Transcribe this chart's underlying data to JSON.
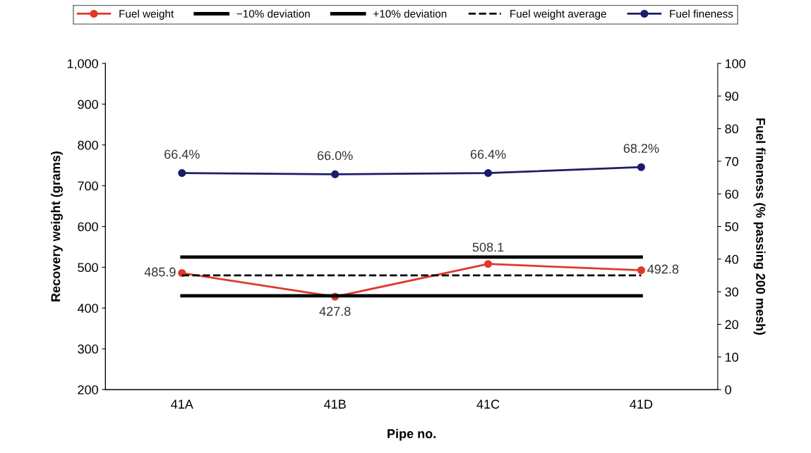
{
  "chart_data": {
    "type": "line",
    "xlabel": "Pipe no.",
    "ylabel": "Recovery weight (grams)",
    "y2label": "Fuel fineness (% passing 200 mesh)",
    "categories": [
      "41A",
      "41B",
      "41C",
      "41D"
    ],
    "series": [
      {
        "name": "Fuel weight",
        "color": "#e0392b",
        "marker": "circle",
        "line_style": "solid",
        "values": [
          485.9,
          427.8,
          508.1,
          492.8
        ],
        "value_labels": [
          "485.9",
          "427.8",
          "508.1",
          "492.8"
        ]
      },
      {
        "name": "−10% deviation",
        "color": "#000000",
        "marker": "none",
        "line_style": "solid",
        "values": [
          430,
          430,
          430,
          430
        ]
      },
      {
        "name": "+10% deviation",
        "color": "#000000",
        "marker": "none",
        "line_style": "solid",
        "values": [
          525,
          525,
          525,
          525
        ]
      },
      {
        "name": "Fuel weight average",
        "color": "#000000",
        "marker": "none",
        "line_style": "dashed",
        "values": [
          480,
          480,
          480,
          480
        ]
      },
      {
        "name": "Fuel fineness",
        "color": "#1c1c6b",
        "marker": "circle",
        "line_style": "solid",
        "axis": "y2",
        "values": [
          66.4,
          66.0,
          66.4,
          68.2
        ],
        "value_labels": [
          "66.4%",
          "66.0%",
          "66.4%",
          "68.2%"
        ]
      }
    ],
    "ylim": [
      200,
      1000
    ],
    "yticks": [
      200,
      300,
      400,
      500,
      600,
      700,
      800,
      900,
      {
        "value": 1000,
        "label": "1,000"
      }
    ],
    "y2lim": [
      0,
      100
    ],
    "y2ticks": [
      0,
      10,
      20,
      30,
      40,
      50,
      60,
      70,
      80,
      90,
      100
    ],
    "grid": false,
    "legend": "top"
  }
}
